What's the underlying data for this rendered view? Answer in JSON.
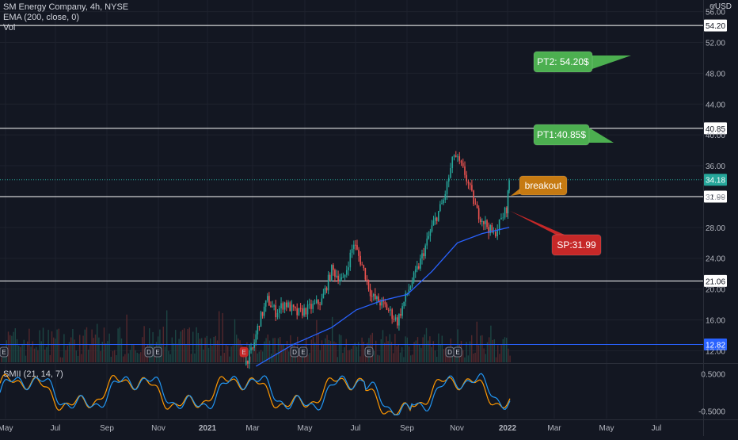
{
  "header": {
    "symbol_line": "SM Energy Company, 4h, NYSE",
    "ema_line": "EMA (200, close, 0)",
    "vol_line": "Vol",
    "currency": "USD",
    "currency_prefix": "6f"
  },
  "subpanel": {
    "label": "SMII (21, 14, 7)"
  },
  "colors": {
    "background": "#131722",
    "up": "#26a69a",
    "down": "#ef5350",
    "ema": "#2962ff",
    "pt_box": "#4caf50",
    "sp_box": "#c62828",
    "breakout_box": "#c67a12",
    "last_price": "#26a69a",
    "smii_main": "#2196f3",
    "smii_signal": "#ff9800"
  },
  "chart_data": [
    {
      "type": "candlestick",
      "title": "SM Energy Company, 4h, NYSE",
      "ylim": [
        10.5,
        57.5
      ],
      "y_ticks": [
        12,
        16,
        20,
        24,
        28,
        32,
        36,
        40,
        44,
        48,
        52,
        56
      ],
      "y_tick_labels": [
        "12.00",
        "16.00",
        "20.00",
        "24.00",
        "28.00",
        "32.00",
        "36.00",
        "40.00",
        "44.00",
        "48.00",
        "52.00",
        "56.00"
      ],
      "x_labels": [
        "May",
        "Jul",
        "Sep",
        "Nov",
        "2021",
        "Mar",
        "May",
        "Jul",
        "Sep",
        "Nov",
        "2022",
        "Mar",
        "May",
        "Jul"
      ],
      "bold_x_labels": [
        "2021",
        "2022"
      ],
      "price_path": [
        {
          "x": "2021-02-15",
          "y": 10.2
        },
        {
          "x": "2021-02-25",
          "y": 12.2
        },
        {
          "x": "2021-03-05",
          "y": 15.8
        },
        {
          "x": "2021-03-15",
          "y": 18.6
        },
        {
          "x": "2021-03-25",
          "y": 17.0
        },
        {
          "x": "2021-04-05",
          "y": 18.2
        },
        {
          "x": "2021-04-20",
          "y": 16.8
        },
        {
          "x": "2021-05-05",
          "y": 17.5
        },
        {
          "x": "2021-05-20",
          "y": 18.5
        },
        {
          "x": "2021-06-01",
          "y": 22.5
        },
        {
          "x": "2021-06-15",
          "y": 21.0
        },
        {
          "x": "2021-06-28",
          "y": 26.0
        },
        {
          "x": "2021-07-10",
          "y": 22.5
        },
        {
          "x": "2021-07-20",
          "y": 19.0
        },
        {
          "x": "2021-08-05",
          "y": 17.8
        },
        {
          "x": "2021-08-20",
          "y": 15.8
        },
        {
          "x": "2021-09-01",
          "y": 19.5
        },
        {
          "x": "2021-09-15",
          "y": 23.0
        },
        {
          "x": "2021-10-01",
          "y": 28.0
        },
        {
          "x": "2021-10-15",
          "y": 31.5
        },
        {
          "x": "2021-10-28",
          "y": 37.5
        },
        {
          "x": "2021-11-10",
          "y": 35.0
        },
        {
          "x": "2021-11-25",
          "y": 30.0
        },
        {
          "x": "2021-12-05",
          "y": 28.5
        },
        {
          "x": "2021-12-15",
          "y": 27.0
        },
        {
          "x": "2021-12-22",
          "y": 28.5
        },
        {
          "x": "2021-12-31",
          "y": 30.5
        },
        {
          "x": "2022-01-03",
          "y": 34.18
        }
      ],
      "ema_200": [
        {
          "x": "2021-03-01",
          "y": 10.0
        },
        {
          "x": "2021-04-15",
          "y": 12.8
        },
        {
          "x": "2021-06-01",
          "y": 15.0
        },
        {
          "x": "2021-07-01",
          "y": 17.3
        },
        {
          "x": "2021-08-01",
          "y": 18.5
        },
        {
          "x": "2021-09-01",
          "y": 19.3
        },
        {
          "x": "2021-10-01",
          "y": 22.3
        },
        {
          "x": "2021-11-01",
          "y": 26.0
        },
        {
          "x": "2021-12-01",
          "y": 27.2
        },
        {
          "x": "2022-01-03",
          "y": 28.0
        }
      ],
      "horizontal_lines": [
        {
          "price": 54.2,
          "label": "54.20",
          "color": "#ffffff"
        },
        {
          "price": 40.85,
          "label": "40.85",
          "color": "#ffffff"
        },
        {
          "price": 31.99,
          "label": "31.99",
          "color": "#ffffff"
        },
        {
          "price": 21.06,
          "label": "21.06",
          "color": "#ffffff"
        },
        {
          "price": 12.82,
          "label": "12.82",
          "color": "#2962ff"
        }
      ],
      "last_price": {
        "value": 34.18,
        "label": "34.18"
      },
      "annotations": [
        {
          "name": "pt2-callout",
          "text": "PT2: 54.20$",
          "color": "#4caf50"
        },
        {
          "name": "pt1-callout",
          "text": "PT1:40.85$",
          "color": "#4caf50"
        },
        {
          "name": "breakout-callout",
          "text": "breakout",
          "color": "#c67a12"
        },
        {
          "name": "sp-callout",
          "text": "SP:31.99",
          "color": "#c62828"
        }
      ]
    },
    {
      "type": "line",
      "title": "SMII (21, 14, 7)",
      "ylim": [
        -0.7,
        0.75
      ],
      "y_ticks": [
        0.5,
        -0.5
      ],
      "y_tick_labels": [
        "0.5000",
        "-0.5000"
      ]
    }
  ]
}
